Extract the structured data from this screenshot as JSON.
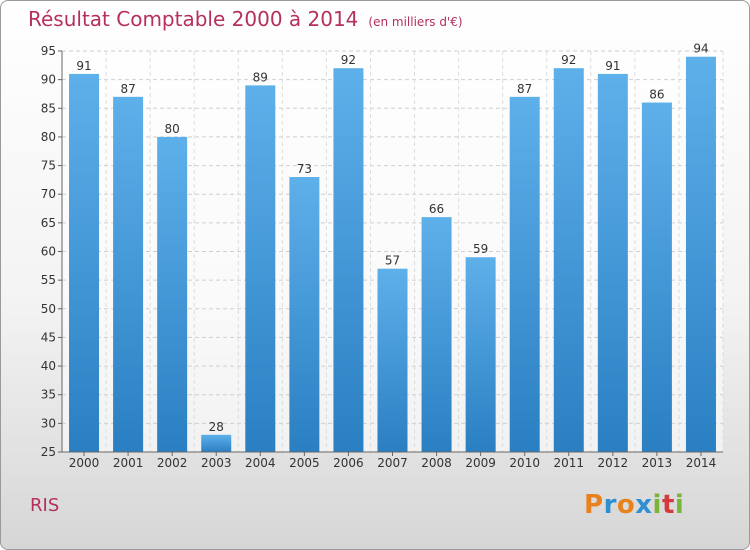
{
  "chart_data": {
    "type": "bar",
    "title": "Résultat Comptable 2000 à 2014",
    "subtitle": "(en milliers d'€)",
    "categories": [
      "2000",
      "2001",
      "2002",
      "2003",
      "2004",
      "2005",
      "2006",
      "2007",
      "2008",
      "2009",
      "2010",
      "2011",
      "2012",
      "2013",
      "2014"
    ],
    "values": [
      91,
      87,
      80,
      28,
      89,
      73,
      92,
      57,
      66,
      59,
      87,
      92,
      91,
      86,
      94
    ],
    "ylim": [
      25,
      95
    ],
    "yticks": [
      25,
      30,
      35,
      40,
      45,
      50,
      55,
      60,
      65,
      70,
      75,
      80,
      85,
      90,
      95
    ],
    "xlabel": "",
    "ylabel": "",
    "grid": true,
    "bar_color": "#3b93d6"
  },
  "footer": {
    "commune": "RIS",
    "logo_letters": [
      "P",
      "r",
      "o",
      "x",
      "i",
      "t",
      "i"
    ],
    "logo_colors": [
      "#e8821e",
      "#2f8fd0",
      "#e8821e",
      "#2f8fd0",
      "#7ab539",
      "#d13b3b",
      "#7ab539"
    ]
  }
}
